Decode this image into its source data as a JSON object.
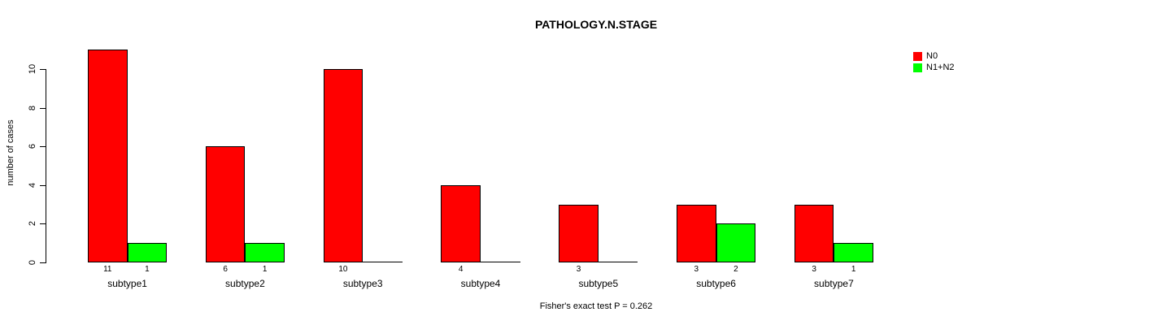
{
  "chart_data": {
    "type": "bar",
    "title": "PATHOLOGY.N.STAGE",
    "ylabel": "number of cases",
    "xlabel": "",
    "categories": [
      "subtype1",
      "subtype2",
      "subtype3",
      "subtype4",
      "subtype5",
      "subtype6",
      "subtype7"
    ],
    "series": [
      {
        "name": "N0",
        "color": "#ff0000",
        "values": [
          11,
          6,
          10,
          4,
          3,
          3,
          3
        ]
      },
      {
        "name": "N1+N2",
        "color": "#00ff00",
        "values": [
          1,
          1,
          0,
          0,
          0,
          2,
          1
        ]
      }
    ],
    "ylim": [
      0,
      10
    ],
    "yticks": [
      0,
      2,
      4,
      6,
      8,
      10
    ],
    "bar_value_labels": {
      "N0": [
        "11",
        "6",
        "10",
        "4",
        "3",
        "3",
        "3"
      ],
      "N1+N2": [
        "1",
        "1",
        "",
        "",
        "",
        "2",
        "1"
      ]
    },
    "legend_position": "top-right",
    "grid": false,
    "footnote": "Fisher's exact test P = 0.262"
  }
}
